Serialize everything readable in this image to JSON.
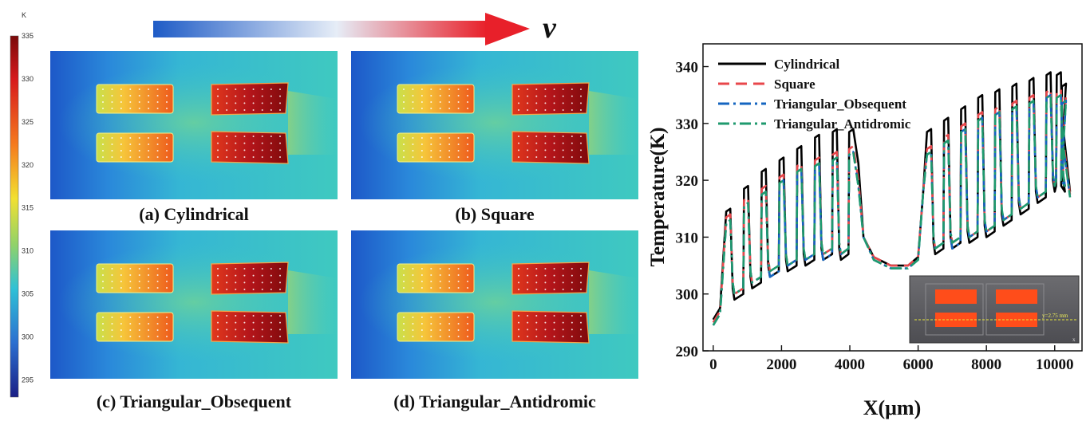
{
  "figure": {
    "velocity_symbol": "v",
    "colorbar": {
      "unit": "K",
      "min": 293,
      "max": 335,
      "ticks": [
        "335",
        "330",
        "325",
        "320",
        "315",
        "310",
        "305",
        "300",
        "295"
      ]
    },
    "panels": [
      {
        "label": "(a) Cylindrical"
      },
      {
        "label": "(b) Square"
      },
      {
        "label": "(c) Triangular_Obsequent"
      },
      {
        "label": "(d) Triangular_Antidromic"
      }
    ],
    "inset": {
      "annotation": "y=2.75 mm",
      "axis": "x"
    }
  },
  "chart_data": {
    "type": "line",
    "ylabel": "Temperature(K)",
    "xlabel": "X(μm)",
    "xlim": [
      -300,
      10800
    ],
    "ylim": [
      290,
      344
    ],
    "xticks": [
      0,
      2000,
      4000,
      6000,
      8000,
      10000
    ],
    "xtick_labels": [
      "0",
      "2000",
      "4000",
      "6000",
      "8000",
      "10000"
    ],
    "yticks": [
      290,
      300,
      310,
      320,
      330,
      340
    ],
    "ytick_labels": [
      "290",
      "300",
      "310",
      "320",
      "330",
      "340"
    ],
    "legend": {
      "location": "top-left"
    },
    "series": [
      {
        "name": "Cylindrical",
        "color": "#000000",
        "dash": "solid",
        "fin_peaks": [
          315,
          319,
          322,
          324,
          326,
          328,
          329,
          329,
          329,
          331,
          333,
          335,
          336,
          337,
          338,
          339,
          339,
          337
        ],
        "trough_mins": [
          299,
          301,
          303,
          304,
          305,
          306,
          306,
          307,
          308,
          309,
          310,
          312,
          314,
          316,
          318
        ],
        "left_edge": [
          0,
          295.5
        ],
        "channel_min": 305,
        "right_edge": [
          10450,
          318
        ]
      },
      {
        "name": "Square",
        "color": "#e8474b",
        "dash": "dashed",
        "fin_peaks": [
          314,
          317,
          319,
          321,
          323,
          324,
          325,
          326,
          326,
          328,
          330,
          332,
          333,
          334,
          335,
          336,
          336,
          335
        ],
        "trough_mins": [
          300,
          302,
          304,
          305,
          306,
          307,
          307,
          308,
          309,
          310,
          311,
          313,
          315,
          317,
          319
        ],
        "left_edge": [
          0,
          295
        ],
        "channel_min": 305,
        "right_edge": [
          10450,
          317.5
        ]
      },
      {
        "name": "Triangular_Obsequent",
        "color": "#1565c0",
        "dash": "dash-dot",
        "fin_peaks": [
          313,
          316,
          318,
          320,
          322,
          323,
          324,
          325,
          325,
          327,
          329,
          331,
          332,
          333,
          334,
          335,
          335,
          334
        ],
        "trough_mins": [
          300,
          302,
          303,
          305,
          306,
          306,
          307,
          308,
          308,
          310,
          311,
          313,
          315,
          317,
          319
        ],
        "left_edge": [
          0,
          294.5
        ],
        "channel_min": 304.5,
        "right_edge": [
          10450,
          317
        ]
      },
      {
        "name": "Triangular_Antidromic",
        "color": "#1f9a6e",
        "dash": "dash-dot",
        "fin_peaks": [
          313,
          316,
          318,
          320,
          322,
          323,
          324,
          325,
          325,
          327,
          329,
          331,
          332,
          333,
          334,
          335,
          335,
          334
        ],
        "trough_mins": [
          300,
          302,
          304,
          305,
          306,
          307,
          307,
          308,
          309,
          310,
          311,
          313,
          315,
          317,
          319
        ],
        "left_edge": [
          0,
          294.5
        ],
        "channel_min": 304.5,
        "right_edge": [
          10450,
          317
        ]
      }
    ]
  }
}
